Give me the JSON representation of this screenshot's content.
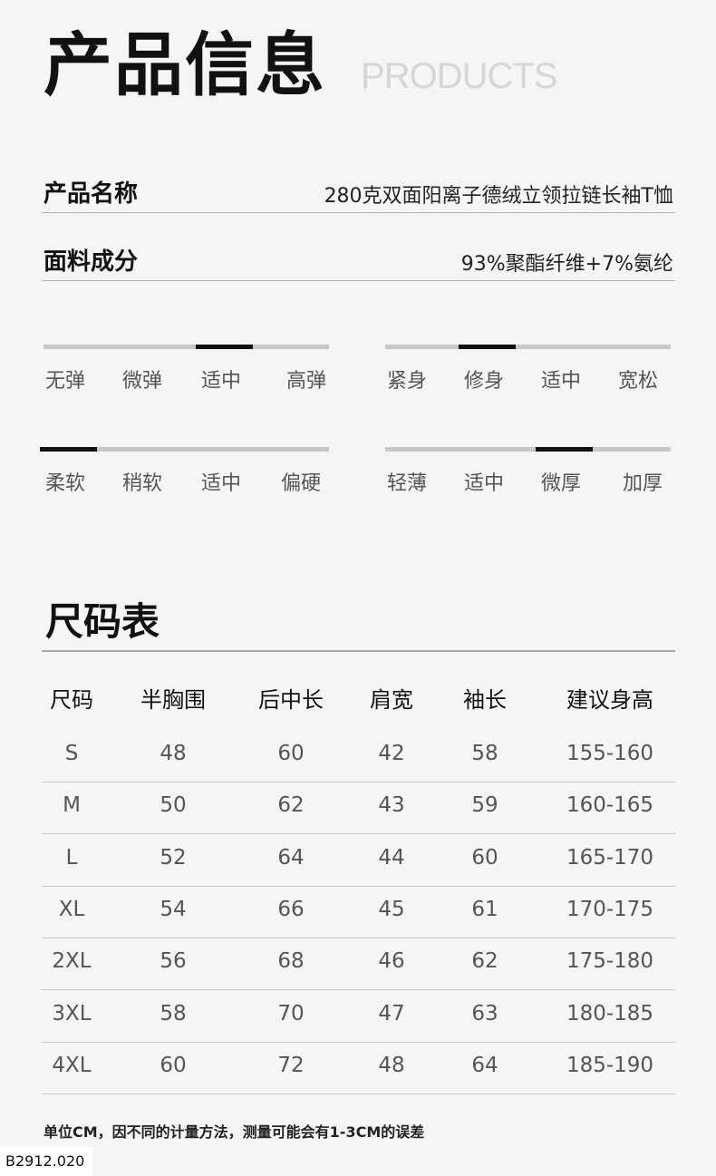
{
  "header": {
    "title": "产品信息",
    "title_en": "PRODUCTS"
  },
  "info": [
    {
      "label": "产品名称",
      "value": "280克双面阳离子德绒立领拉链长袖T恤"
    },
    {
      "label": "面料成分",
      "value": "93%聚酯纤维+7%氨纶"
    }
  ],
  "scales": [
    {
      "name": "elasticity",
      "levels": [
        "无弹",
        "微弹",
        "适中",
        "高弹"
      ],
      "selected_index": 2
    },
    {
      "name": "fit",
      "levels": [
        "紧身",
        "修身",
        "适中",
        "宽松"
      ],
      "selected_index": 1
    },
    {
      "name": "softness",
      "levels": [
        "柔软",
        "稍软",
        "适中",
        "偏硬"
      ],
      "selected_index": 0
    },
    {
      "name": "thickness",
      "levels": [
        "轻薄",
        "适中",
        "微厚",
        "加厚"
      ],
      "selected_index": 2
    }
  ],
  "size_chart": {
    "title": "尺码表",
    "headers": [
      "尺码",
      "半胸围",
      "后中长",
      "肩宽",
      "袖长",
      "建议身高"
    ],
    "rows": [
      [
        "S",
        "48",
        "60",
        "42",
        "58",
        "155-160"
      ],
      [
        "M",
        "50",
        "62",
        "43",
        "59",
        "160-165"
      ],
      [
        "L",
        "52",
        "64",
        "44",
        "60",
        "165-170"
      ],
      [
        "XL",
        "54",
        "66",
        "45",
        "61",
        "170-175"
      ],
      [
        "2XL",
        "56",
        "68",
        "46",
        "62",
        "175-180"
      ],
      [
        "3XL",
        "58",
        "70",
        "47",
        "63",
        "180-185"
      ],
      [
        "4XL",
        "60",
        "72",
        "48",
        "64",
        "185-190"
      ]
    ],
    "note": "单位CM，因不同的计量方法，测量可能会有1-3CM的误差"
  },
  "code": "B2912.020"
}
